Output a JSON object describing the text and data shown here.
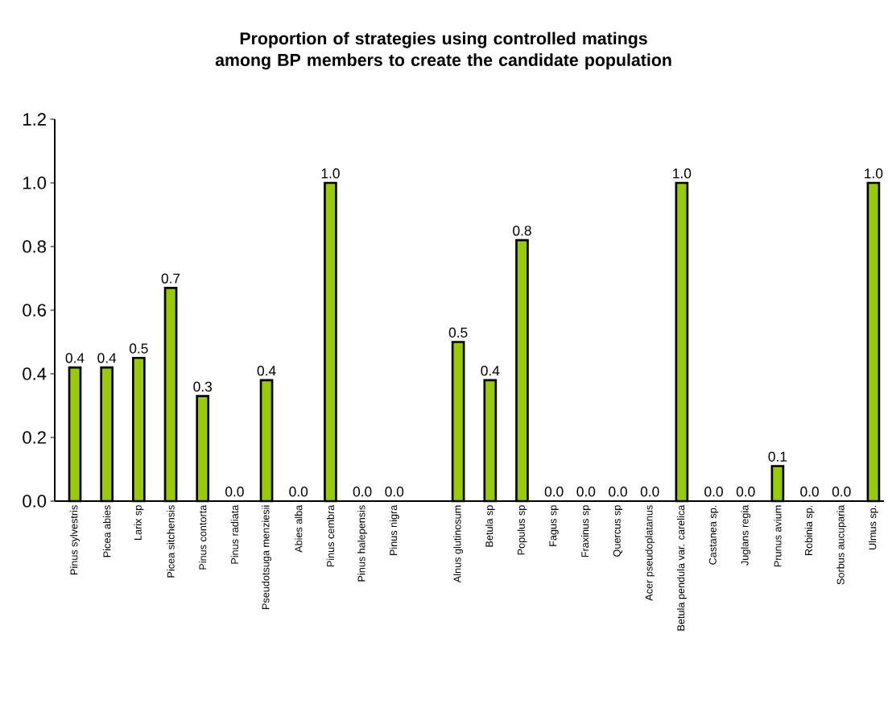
{
  "chart_data": {
    "type": "bar",
    "title": "Proportion of strategies using controlled matings among BP members to create the candidate population",
    "categories": [
      "Pinus sylvestris",
      "Picea abies",
      "Larix sp",
      "Picea sitchensis",
      "Pinus contorta",
      "Pinus radiata",
      "Pseudotsuga menziesii",
      "Abies alba",
      "Pinus cembra",
      "Pinus halepensis",
      "Pinus nigra",
      null,
      "Alnus glutinosum",
      "Betula sp",
      "Populus sp",
      "Fagus sp",
      "Fraxinus sp",
      "Quercus sp",
      "Acer pseudoplatanus",
      "Betula pendula var. carelica",
      "Castanea sp.",
      "Juglans regia",
      "Prunus avium",
      "Robinia sp.",
      "Sorbus aucuparia",
      "Ulmus sp."
    ],
    "values": [
      0.42,
      0.42,
      0.45,
      0.67,
      0.33,
      0,
      0.38,
      0,
      1,
      0,
      0,
      null,
      0.5,
      0.38,
      0.82,
      0,
      0,
      0,
      0,
      1,
      0,
      0,
      0.11,
      0,
      0,
      1
    ],
    "value_labels": [
      "0.4",
      "0.4",
      "0.5",
      "0.7",
      "0.3",
      "0.0",
      "0.4",
      "0.0",
      "1.0",
      "0.0",
      "0.0",
      null,
      "0.5",
      "0.4",
      "0.8",
      "0.0",
      "0.0",
      "0.0",
      "0.0",
      "1.0",
      "0.0",
      "0.0",
      "0.1",
      "0.0",
      "0.0",
      "1.0"
    ],
    "color": "#99cc00",
    "ylim": [
      0,
      1.2
    ],
    "yticks": [
      {
        "value": 0,
        "label": "0.0"
      },
      {
        "value": 0.2,
        "label": "0.2"
      },
      {
        "value": 0.4,
        "label": "0.4"
      },
      {
        "value": 0.6,
        "label": "0.6"
      },
      {
        "value": 0.8,
        "label": "0.8"
      },
      {
        "value": 1.0,
        "label": "1.0"
      },
      {
        "value": 1.2,
        "label": "1.2"
      }
    ],
    "grid": false
  }
}
